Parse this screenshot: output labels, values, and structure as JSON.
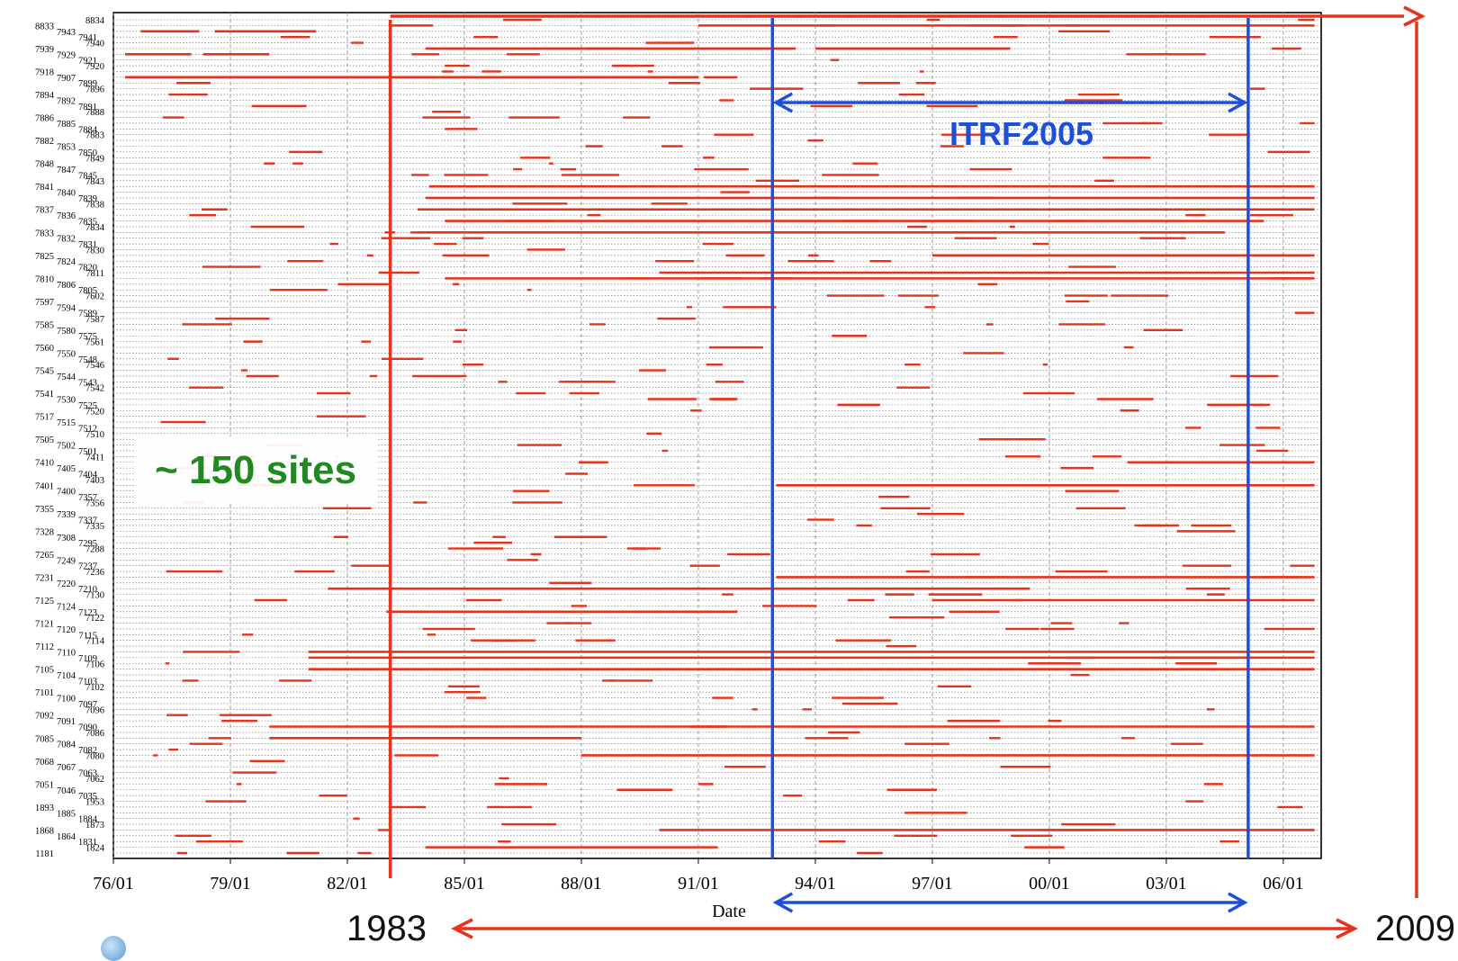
{
  "chart_data": {
    "type": "timeline",
    "xlabel": "Date",
    "x_tick_labels": [
      "76/01",
      "79/01",
      "82/01",
      "85/01",
      "88/01",
      "91/01",
      "94/01",
      "97/01",
      "00/01",
      "03/01",
      "06/01"
    ],
    "xlim": [
      1976.0,
      2007.0
    ],
    "y_tick_labels": [
      "8834",
      "8833",
      "7943",
      "7941",
      "7940",
      "7939",
      "7929",
      "7921",
      "7920",
      "7918",
      "7907",
      "7899",
      "7896",
      "7894",
      "7892",
      "7891",
      "7888",
      "7886",
      "7885",
      "7884",
      "7883",
      "7882",
      "7853",
      "7850",
      "7849",
      "7848",
      "7847",
      "7845",
      "7843",
      "7841",
      "7840",
      "7839",
      "7838",
      "7837",
      "7836",
      "7835",
      "7834",
      "7833",
      "7832",
      "7831",
      "7830",
      "7825",
      "7824",
      "7820",
      "7811",
      "7810",
      "7806",
      "7805",
      "7602",
      "7597",
      "7594",
      "7589",
      "7587",
      "7585",
      "7580",
      "7575",
      "7561",
      "7560",
      "7550",
      "7548",
      "7546",
      "7545",
      "7544",
      "7543",
      "7542",
      "7541",
      "7530",
      "7525",
      "7520",
      "7517",
      "7515",
      "7512",
      "7510",
      "7505",
      "7502",
      "7501",
      "7411",
      "7410",
      "7405",
      "7404",
      "7403",
      "7401",
      "7400",
      "7357",
      "7356",
      "7355",
      "7339",
      "7337",
      "7335",
      "7328",
      "7308",
      "7295",
      "7288",
      "7265",
      "7249",
      "7237",
      "7236",
      "7231",
      "7220",
      "7210",
      "7130",
      "7125",
      "7124",
      "7123",
      "7122",
      "7121",
      "7120",
      "7115",
      "7114",
      "7112",
      "7110",
      "7109",
      "7106",
      "7105",
      "7104",
      "7103",
      "7102",
      "7101",
      "7100",
      "7097",
      "7096",
      "7092",
      "7091",
      "7090",
      "7086",
      "7085",
      "7084",
      "7082",
      "7080",
      "7068",
      "7067",
      "7063",
      "7062",
      "7051",
      "7046",
      "7035",
      "1953",
      "1893",
      "1885",
      "1884",
      "1873",
      "1868",
      "1864",
      "1831",
      "1824",
      "1181"
    ],
    "series": [
      {
        "site": "8833",
        "spans": [
          [
            1983.1,
            1984.2
          ],
          [
            1991.0,
            2006.8
          ]
        ]
      },
      {
        "site": "7943",
        "spans": [
          [
            1976.7,
            1978.2
          ],
          [
            1978.6,
            1981.2
          ]
        ]
      },
      {
        "site": "7939",
        "spans": [
          [
            1984.0,
            1993.5
          ],
          [
            1994.0,
            1999.0
          ]
        ]
      },
      {
        "site": "7929",
        "spans": [
          [
            1976.3,
            1978.0
          ],
          [
            1978.3,
            1980.0
          ]
        ]
      },
      {
        "site": "7907",
        "spans": [
          [
            1976.3,
            1983.1
          ],
          [
            1983.1,
            1991.0
          ]
        ]
      },
      {
        "site": "7841",
        "spans": [
          [
            1984.1,
            2006.8
          ]
        ]
      },
      {
        "site": "7839",
        "spans": [
          [
            1984.0,
            2006.8
          ]
        ]
      },
      {
        "site": "7837",
        "spans": [
          [
            1983.8,
            2006.8
          ]
        ]
      },
      {
        "site": "7835",
        "spans": [
          [
            1984.5,
            2005.5
          ]
        ]
      },
      {
        "site": "7833",
        "spans": [
          [
            1983.8,
            2004.5
          ]
        ]
      },
      {
        "site": "7825",
        "spans": [
          [
            1997.0,
            2006.8
          ]
        ]
      },
      {
        "site": "7811",
        "spans": [
          [
            1990.0,
            2006.8
          ]
        ]
      },
      {
        "site": "7810",
        "spans": [
          [
            1984.5,
            2006.8
          ]
        ]
      },
      {
        "site": "7410",
        "spans": [
          [
            2002.0,
            2006.8
          ]
        ]
      },
      {
        "site": "7401",
        "spans": [
          [
            1993.0,
            2006.8
          ]
        ]
      },
      {
        "site": "7231",
        "spans": [
          [
            1993.0,
            2006.8
          ]
        ]
      },
      {
        "site": "7210",
        "spans": [
          [
            1981.5,
            1999.5
          ]
        ]
      },
      {
        "site": "7125",
        "spans": [
          [
            1997.0,
            2006.8
          ]
        ]
      },
      {
        "site": "7123",
        "spans": [
          [
            1983.0,
            1992.0
          ]
        ]
      },
      {
        "site": "7110",
        "spans": [
          [
            1981.0,
            2006.8
          ]
        ]
      },
      {
        "site": "7109",
        "spans": [
          [
            1981.0,
            2006.8
          ]
        ]
      },
      {
        "site": "7105",
        "spans": [
          [
            1981.0,
            2006.8
          ]
        ]
      },
      {
        "site": "7090",
        "spans": [
          [
            1980.0,
            2006.8
          ]
        ]
      },
      {
        "site": "7085",
        "spans": [
          [
            1980.0,
            1988.0
          ]
        ]
      },
      {
        "site": "7080",
        "spans": [
          [
            1988.0,
            2006.8
          ]
        ]
      },
      {
        "site": "1868",
        "spans": [
          [
            1990.0,
            2006.8
          ]
        ]
      },
      {
        "site": "1824",
        "spans": [
          [
            1984.0,
            1991.5
          ]
        ]
      }
    ],
    "annotations": [
      {
        "text": "~ 150 sites",
        "color": "#1f8a1f"
      },
      {
        "text": "ITRF2005",
        "color": "#1d4fd8",
        "span": [
          1992.9,
          2005.1
        ]
      },
      {
        "text": "1983",
        "color": "#e8331c",
        "marker_year": 1983.1
      },
      {
        "text": "2009",
        "color": "#e8331c"
      }
    ],
    "colors": {
      "bars": "#e8331c",
      "itrf": "#1d4fd8",
      "grid": "#666666",
      "sites_label": "#1f8a1f"
    },
    "grid": true
  }
}
